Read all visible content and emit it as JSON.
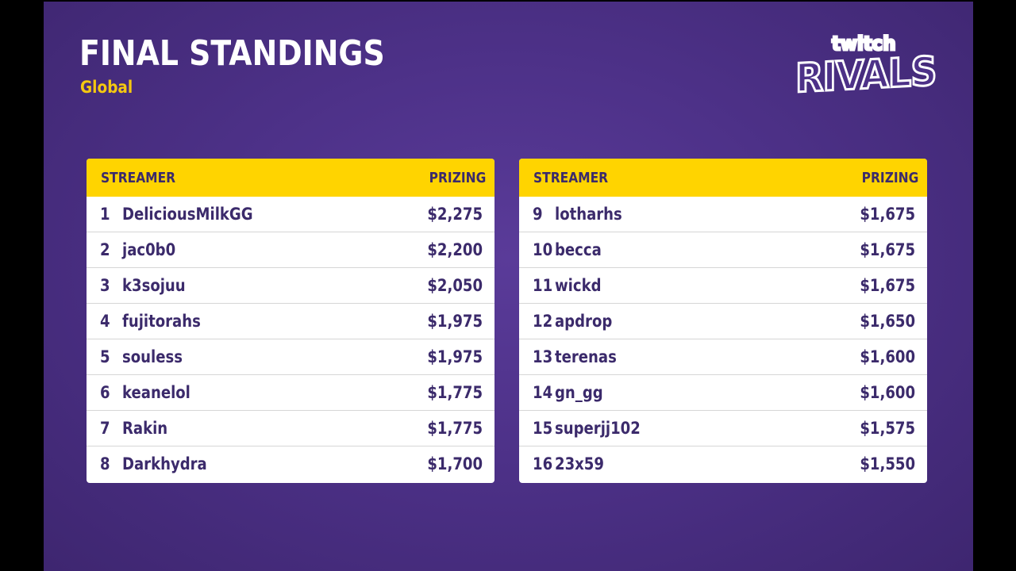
{
  "header": {
    "title": "FINAL STANDINGS",
    "subtitle": "Global"
  },
  "logo": {
    "top_text": "twitch",
    "main_text": "RIVALS"
  },
  "colors": {
    "background": "#4d3188",
    "header_bar": "#ffd400",
    "accent_text": "#f4c810",
    "table_text": "#3b2a6b"
  },
  "columns": {
    "streamer": "STREAMER",
    "prizing": "PRIZING"
  },
  "left_table": [
    {
      "rank": "1",
      "name": "DeliciousMilkGG",
      "prize": "$2,275"
    },
    {
      "rank": "2",
      "name": "jac0b0",
      "prize": "$2,200"
    },
    {
      "rank": "3",
      "name": "k3sojuu",
      "prize": "$2,050"
    },
    {
      "rank": "4",
      "name": "fujitorahs",
      "prize": "$1,975"
    },
    {
      "rank": "5",
      "name": "souless",
      "prize": "$1,975"
    },
    {
      "rank": "6",
      "name": "keanelol",
      "prize": "$1,775"
    },
    {
      "rank": "7",
      "name": "Rakin",
      "prize": "$1,775"
    },
    {
      "rank": "8",
      "name": "Darkhydra",
      "prize": "$1,700"
    }
  ],
  "right_table": [
    {
      "rank": "9",
      "name": "lotharhs",
      "prize": "$1,675"
    },
    {
      "rank": "10",
      "name": "becca",
      "prize": "$1,675"
    },
    {
      "rank": "11",
      "name": "wickd",
      "prize": "$1,675"
    },
    {
      "rank": "12",
      "name": "apdrop",
      "prize": "$1,650"
    },
    {
      "rank": "13",
      "name": "terenas",
      "prize": "$1,600"
    },
    {
      "rank": "14",
      "name": "gn_gg",
      "prize": "$1,600"
    },
    {
      "rank": "15",
      "name": "superjj102",
      "prize": "$1,575"
    },
    {
      "rank": "16",
      "name": "23x59",
      "prize": "$1,550"
    }
  ]
}
